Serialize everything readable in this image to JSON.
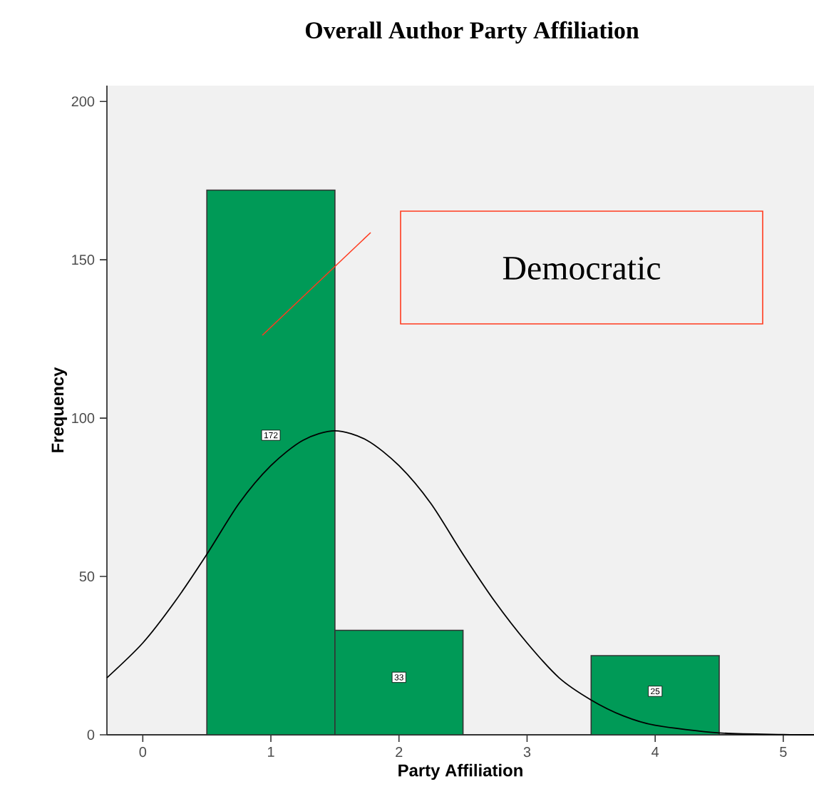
{
  "chart_data": {
    "type": "histogram",
    "title": "Overall Author Party Affiliation",
    "xlabel": "Party Affiliation",
    "ylabel": "Frequency",
    "series": [
      {
        "bins": [
          0.5,
          1.5,
          2.5,
          3.5,
          4.5
        ],
        "values": [
          172,
          33,
          0,
          25
        ],
        "color": "#009a57",
        "value_labels": [
          "172",
          "33",
          null,
          "25"
        ]
      },
      {
        "type": "line",
        "color": "#000000",
        "x": [
          -0.28,
          0,
          0.25,
          0.5,
          0.75,
          1,
          1.25,
          1.5,
          1.75,
          2,
          2.25,
          2.5,
          2.75,
          3,
          3.25,
          3.5,
          3.75,
          4,
          4.5,
          5,
          5.24
        ],
        "values": [
          18,
          29,
          42,
          57,
          73,
          85,
          93,
          96,
          93,
          85,
          73,
          57,
          42,
          29,
          18,
          11,
          6,
          3,
          0.6,
          0.1,
          0
        ]
      }
    ],
    "xlim": [
      -0.28,
      5.24
    ],
    "ylim": [
      0,
      205
    ],
    "xticks": [
      0,
      1,
      2,
      3,
      4,
      5
    ],
    "yticks": [
      0,
      50,
      100,
      150,
      200
    ],
    "annotations": [
      "Democratic"
    ],
    "grid": false
  }
}
